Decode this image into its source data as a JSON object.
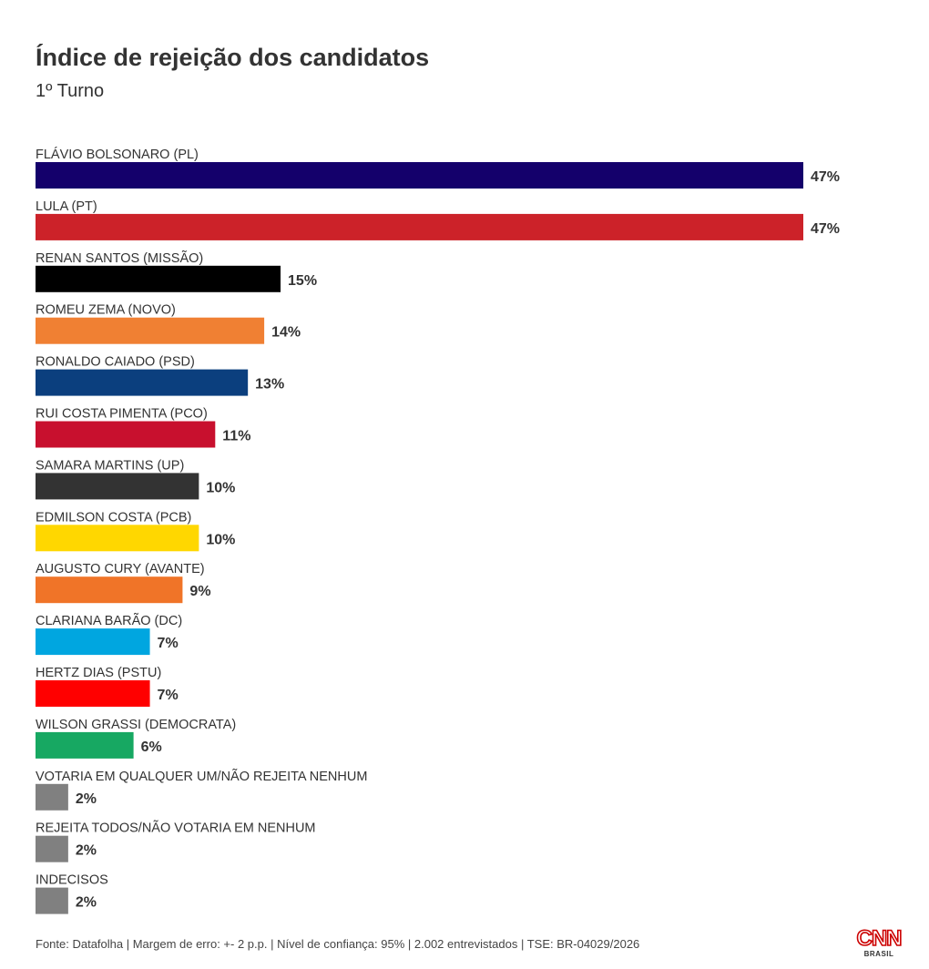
{
  "chart_data": {
    "type": "bar",
    "orientation": "horizontal",
    "title": "Índice de rejeição dos candidatos",
    "subtitle": "1º Turno",
    "value_suffix": "%",
    "xlim": [
      0,
      47
    ],
    "grid": false,
    "legend": "none",
    "categories": [
      "FLÁVIO BOLSONARO (PL)",
      "LULA (PT)",
      "RENAN SANTOS (MISSÃO)",
      "ROMEU ZEMA (NOVO)",
      "RONALDO CAIADO (PSD)",
      "RUI COSTA PIMENTA (PCO)",
      "SAMARA MARTINS (UP)",
      "EDMILSON COSTA (PCB)",
      "AUGUSTO CURY (AVANTE)",
      "CLARIANA BARÃO (DC)",
      "HERTZ DIAS (PSTU)",
      "WILSON GRASSI (DEMOCRATA)",
      "VOTARIA EM QUALQUER UM/NÃO REJEITA NENHUM",
      "REJEITA TODOS/NÃO VOTARIA EM NENHUM",
      "INDECISOS"
    ],
    "values": [
      47,
      47,
      15,
      14,
      13,
      11,
      10,
      10,
      9,
      7,
      7,
      6,
      2,
      2,
      2
    ],
    "colors": [
      "#14006b",
      "#cc2229",
      "#000000",
      "#f08033",
      "#0b3f7e",
      "#c8102e",
      "#333333",
      "#ffd700",
      "#f07428",
      "#00a6e0",
      "#ff0000",
      "#17a862",
      "#808080",
      "#808080",
      "#808080"
    ]
  },
  "footer": {
    "source": "Fonte: Datafolha | Margem de erro: +- 2 p.p. | Nível de confiança: 95% | 2.002 entrevistados | TSE: BR-04029/2026"
  },
  "logo": {
    "name": "CNN",
    "sub": "BRASIL"
  }
}
